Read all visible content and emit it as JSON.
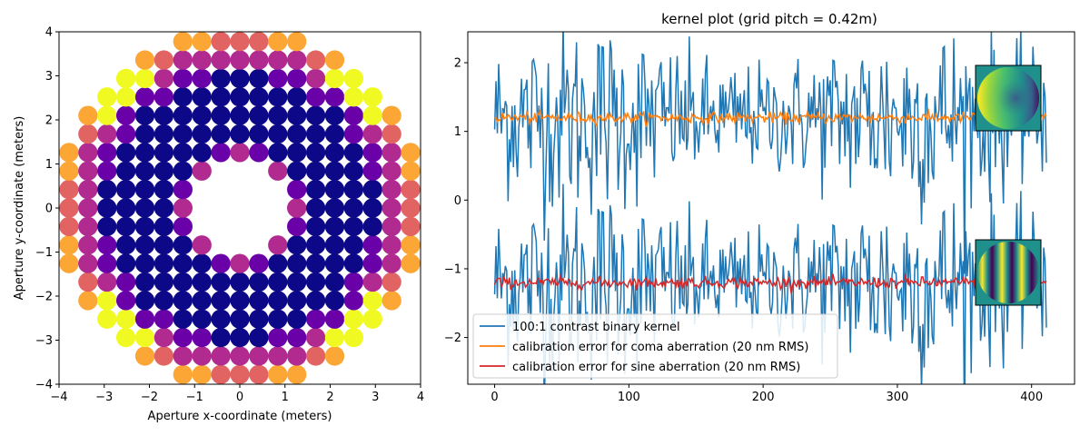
{
  "chart_data": [
    {
      "type": "scatter",
      "title": "",
      "xlabel": "Aperture x-coordinate (meters)",
      "ylabel": "Aperture y-coordinate (meters)",
      "xlim": [
        -4,
        4
      ],
      "ylim": [
        -4,
        4
      ],
      "xticks": [
        -4,
        -3,
        -2,
        -1,
        0,
        1,
        2,
        3,
        4
      ],
      "yticks": [
        -4,
        -3,
        -2,
        -1,
        0,
        1,
        2,
        3,
        4
      ],
      "grid_pitch": 0.42,
      "aperture_outer_radius": 4.0,
      "aperture_inner_radius": 1.0,
      "colormap": "plasma",
      "colors": {
        "low": "#0d0887",
        "mid1": "#6a00a8",
        "mid2": "#b12a90",
        "mid3": "#e16462",
        "high": "#fca636",
        "top": "#f0f921"
      }
    },
    {
      "type": "line",
      "title": "kernel plot (grid pitch = 0.42m)",
      "xlabel": "",
      "ylabel": "",
      "xlim": [
        -20,
        432
      ],
      "ylim": [
        -2.68,
        2.45
      ],
      "xticks": [
        0,
        100,
        200,
        300,
        400
      ],
      "yticks": [
        -2,
        -1,
        0,
        1,
        2
      ],
      "n_points": 412,
      "legend_position": "lower-left",
      "series": [
        {
          "name": "100:1 contrast binary kernel",
          "color": "#1f77b4",
          "offset_upper": 1.2,
          "offset_lower": -1.2,
          "amplitude": 0.55
        },
        {
          "name": "calibration error for coma aberration (20 nm RMS)",
          "color": "#ff7f0e",
          "offset": 1.2,
          "amplitude": 0.04
        },
        {
          "name": "calibration error for sine aberration (20 nm RMS)",
          "color": "#d62728",
          "offset": -1.2,
          "amplitude": 0.04
        }
      ],
      "insets": [
        {
          "name": "coma aberration map",
          "colormap": "viridis"
        },
        {
          "name": "sine aberration map",
          "colormap": "viridis"
        }
      ]
    }
  ]
}
